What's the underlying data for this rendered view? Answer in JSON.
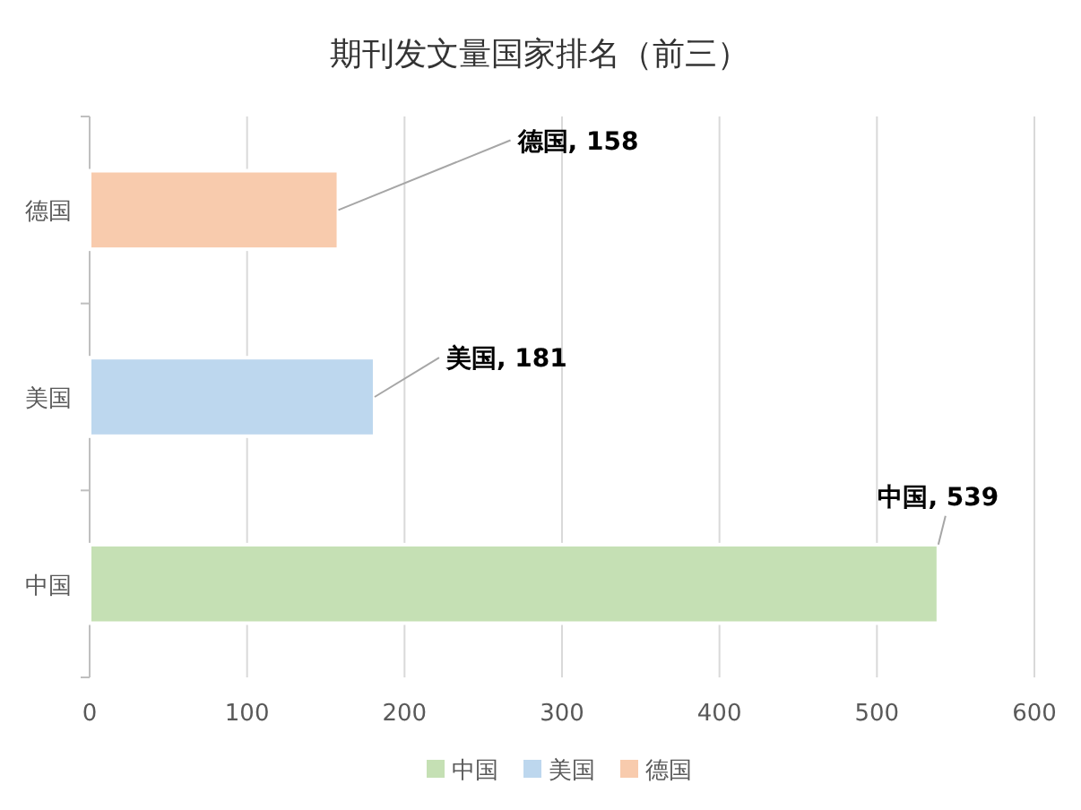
{
  "chart_data": {
    "type": "bar",
    "orientation": "horizontal",
    "title": "期刊发文量国家排名（前三）",
    "categories": [
      "德国",
      "美国",
      "中国"
    ],
    "series": [
      {
        "name": "中国",
        "color": "#c5e0b4",
        "values": [
          null,
          null,
          539
        ],
        "value_labels": [
          null,
          null,
          "中国, 539"
        ]
      },
      {
        "name": "美国",
        "color": "#bdd7ee",
        "values": [
          null,
          181,
          null
        ],
        "value_labels": [
          null,
          "美国, 181",
          null
        ]
      },
      {
        "name": "德国",
        "color": "#f8cbad",
        "values": [
          158,
          null,
          null
        ],
        "value_labels": [
          "德国, 158",
          null,
          null
        ]
      }
    ],
    "xlim": [
      0,
      600
    ],
    "xticks": [
      0,
      100,
      200,
      300,
      400,
      500,
      600
    ],
    "grid": "x",
    "legend": "bottom"
  }
}
